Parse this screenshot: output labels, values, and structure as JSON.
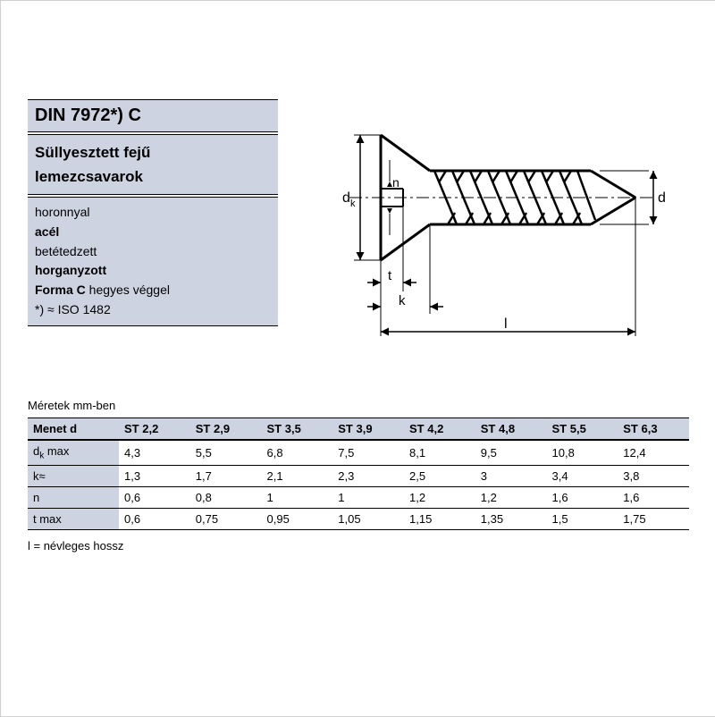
{
  "header": {
    "title": "DIN 7972*) C",
    "subtitle_line1": "Süllyesztett fejű",
    "subtitle_line2": "lemezcsavarok",
    "details": {
      "l1": "horonnyal",
      "l2": "acél",
      "l3": "betétedzett",
      "l4": "horganyzott",
      "l5a": "Forma C",
      "l5b": " hegyes véggel",
      "l6": "*) ≈ ISO 1482"
    }
  },
  "diagram": {
    "labels": {
      "dk": "d",
      "dk_sub": "k",
      "n": "n",
      "t": "t",
      "k": "k",
      "l": "l",
      "d": "d"
    },
    "stroke": "#000000",
    "fill": "#000000",
    "arrow_fill": "#000000"
  },
  "table": {
    "units_label": "Méretek mm-ben",
    "head": {
      "rowlabel": "Menet d",
      "cols": [
        "ST 2,2",
        "ST 2,9",
        "ST 3,5",
        "ST 3,9",
        "ST 4,2",
        "ST 4,8",
        "ST 5,5",
        "ST 6,3"
      ]
    },
    "rows": [
      {
        "label_html": "d<span class='sub'>k</span> max",
        "cells": [
          "4,3",
          "5,5",
          "6,8",
          "7,5",
          "8,1",
          "9,5",
          "10,8",
          "12,4"
        ]
      },
      {
        "label_html": "k≈",
        "cells": [
          "1,3",
          "1,7",
          "2,1",
          "2,3",
          "2,5",
          "3",
          "3,4",
          "3,8"
        ]
      },
      {
        "label_html": "n",
        "cells": [
          "0,6",
          "0,8",
          "1",
          "1",
          "1,2",
          "1,2",
          "1,6",
          "1,6"
        ]
      },
      {
        "label_html": "t max",
        "cells": [
          "0,6",
          "0,75",
          "0,95",
          "1,05",
          "1,15",
          "1,35",
          "1,5",
          "1,75"
        ]
      }
    ],
    "legend": "l = névleges hossz",
    "header_bg": "#cdd3e1",
    "border_color": "#000000",
    "font_size": 13
  }
}
